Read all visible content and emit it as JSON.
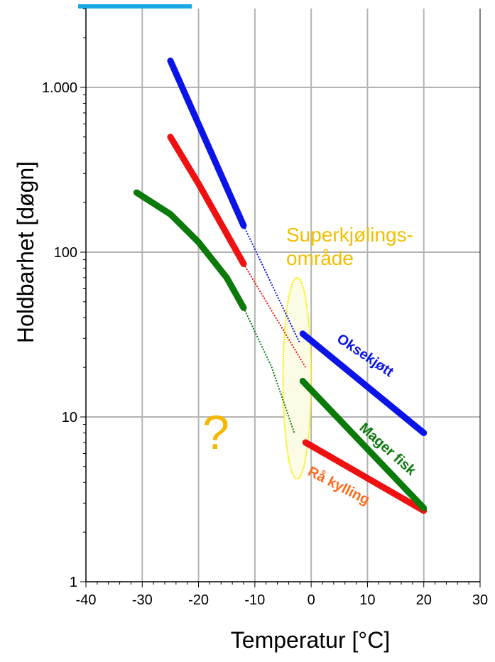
{
  "chart_data": {
    "type": "line",
    "title": "",
    "xlabel": "Temperatur  [°C]",
    "ylabel": "Holdbarhet  [døgn]",
    "xlim": [
      -40,
      30
    ],
    "ylim": [
      1,
      3000
    ],
    "y_scale": "log",
    "grid": true,
    "x_ticks": [
      -40,
      -30,
      -20,
      -10,
      0,
      10,
      20,
      30
    ],
    "x_tick_labels": [
      "-40",
      "-30",
      "-20",
      "-10",
      "0",
      "10",
      "20",
      "30"
    ],
    "y_ticks": [
      1,
      10,
      100,
      1000
    ],
    "y_tick_labels": [
      "1",
      "10",
      "100",
      "1.000"
    ],
    "series": [
      {
        "name": "Oksekjøtt",
        "color": "#0a14e6",
        "label_color": "#0a14e6",
        "segments": [
          {
            "style": "thick",
            "x": [
              -25,
              -12
            ],
            "y": [
              1450,
              145
            ]
          },
          {
            "style": "dotted",
            "x": [
              -12,
              -2
            ],
            "y": [
              145,
              28
            ]
          },
          {
            "style": "thick",
            "x": [
              -1.5,
              20
            ],
            "y": [
              32,
              8
            ]
          }
        ]
      },
      {
        "name": "Rå kylling",
        "color": "#ee1111",
        "label_color": "#ff6a1a",
        "segments": [
          {
            "style": "thick",
            "x": [
              -25,
              -20,
              -12
            ],
            "y": [
              500,
              260,
              85
            ]
          },
          {
            "style": "dotted",
            "x": [
              -12,
              -1
            ],
            "y": [
              85,
              20
            ]
          },
          {
            "style": "thick",
            "x": [
              -1,
              20
            ],
            "y": [
              7,
              2.7
            ]
          }
        ]
      },
      {
        "name": "Mager fisk",
        "color": "#0a7a0a",
        "label_color": "#0a7a0a",
        "segments": [
          {
            "style": "thick",
            "x": [
              -31,
              -25,
              -20,
              -15,
              -12
            ],
            "y": [
              230,
              170,
              115,
              70,
              46
            ]
          },
          {
            "style": "dotted",
            "x": [
              -12,
              -7,
              -3
            ],
            "y": [
              46,
              20,
              8
            ]
          },
          {
            "style": "thick",
            "x": [
              -1.5,
              20
            ],
            "y": [
              16.5,
              2.8
            ]
          }
        ]
      }
    ],
    "annotations": {
      "region_label_line1": "Superkjølings-",
      "region_label_line2": "område",
      "question_mark": "?"
    },
    "supercooling_region": {
      "x_center": -2.5,
      "x_half_width": 2.5,
      "y_min": 4.2,
      "y_max": 70
    }
  },
  "colors": {
    "grid": "#b4b4b4",
    "region_stroke": "#f5f000",
    "region_fill": "#fbfbe6",
    "region_label": "#f0c000",
    "question_mark": "#f5b800",
    "top_bar": "#1aa7e6"
  }
}
